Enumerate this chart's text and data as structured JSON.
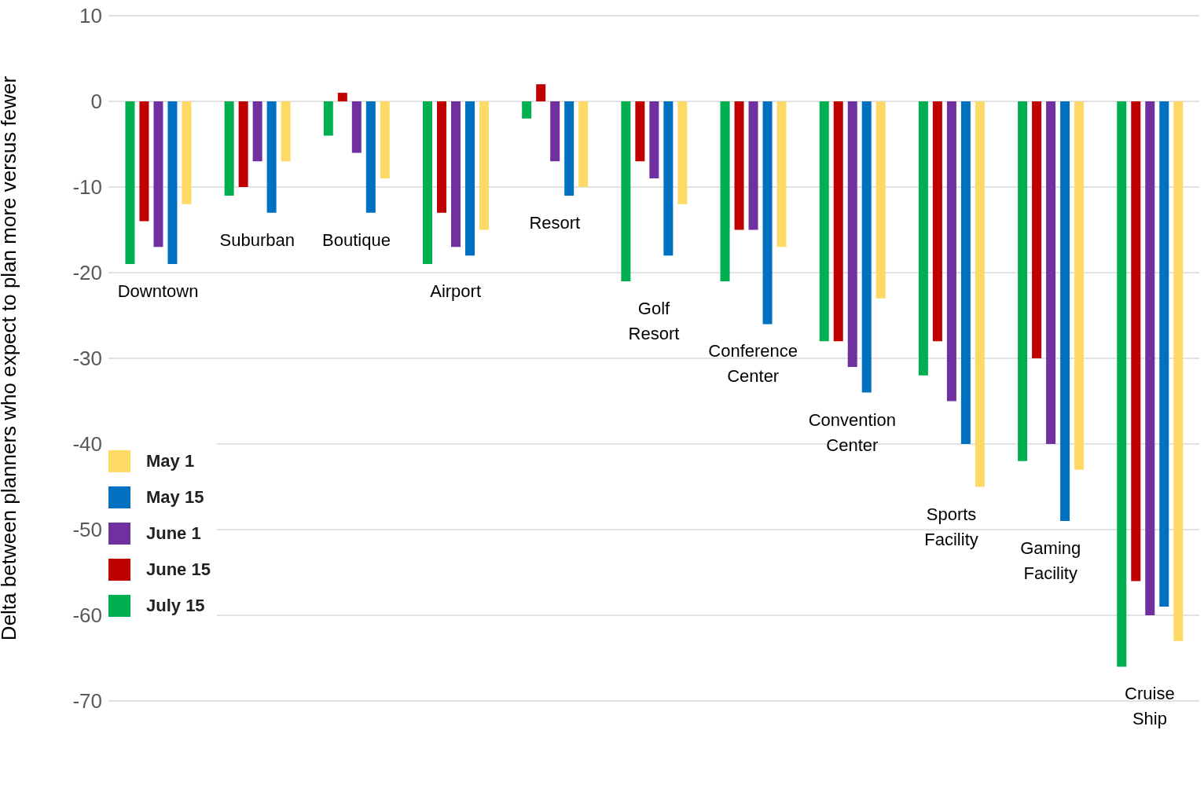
{
  "chart_data": {
    "type": "bar",
    "ylabel": "Delta between planners who expect to plan more versus fewer",
    "categories": [
      "Downtown",
      "Suburban",
      "Boutique",
      "Airport",
      "Resort",
      "Golf Resort",
      "Conference Center",
      "Convention Center",
      "Sports Facility",
      "Gaming Facility",
      "Cruise Ship"
    ],
    "series": [
      {
        "name": "July 15",
        "color": "#00b050",
        "values": [
          -19,
          -11,
          -4,
          -19,
          -2,
          -21,
          -21,
          -28,
          -32,
          -42,
          -66
        ]
      },
      {
        "name": "June 15",
        "color": "#c00000",
        "values": [
          -14,
          -10,
          1,
          -13,
          2,
          -7,
          -15,
          -28,
          -28,
          -30,
          -56
        ]
      },
      {
        "name": "June 1",
        "color": "#7030a0",
        "values": [
          -17,
          -7,
          -6,
          -17,
          -7,
          -9,
          -15,
          -31,
          -35,
          -40,
          -60
        ]
      },
      {
        "name": "May 15",
        "color": "#0070c0",
        "values": [
          -19,
          -13,
          -13,
          -18,
          -11,
          -18,
          -26,
          -34,
          -40,
          -49,
          -59
        ]
      },
      {
        "name": "May 1",
        "color": "#ffd966",
        "values": [
          -12,
          -7,
          -9,
          -15,
          -10,
          -12,
          -17,
          -23,
          -45,
          -43,
          -63
        ]
      }
    ],
    "ylim": [
      -70,
      10
    ],
    "yticks": [
      -70,
      -60,
      -50,
      -40,
      -30,
      -20,
      -10,
      0,
      10
    ],
    "grid": "y",
    "legend": "left"
  }
}
